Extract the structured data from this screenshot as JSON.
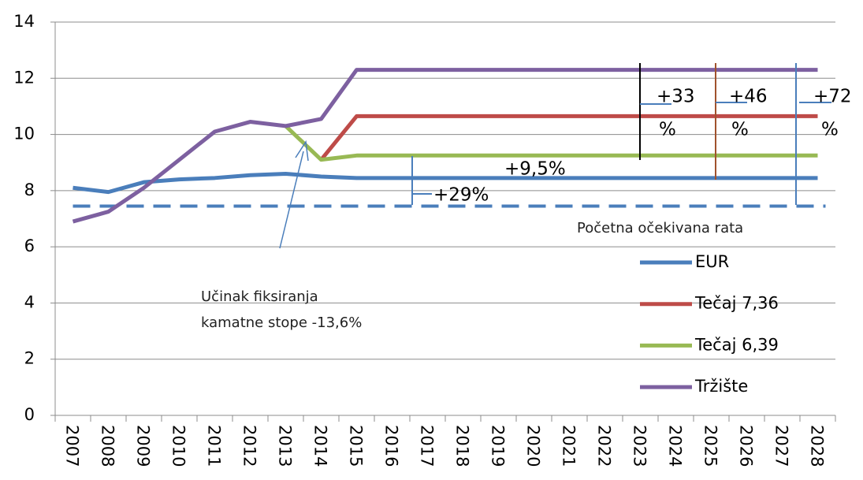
{
  "chart_data": {
    "type": "line",
    "categories": [
      "2007",
      "2008",
      "2009",
      "2010",
      "2011",
      "2012",
      "2013",
      "2014",
      "2015",
      "2016",
      "2017",
      "2018",
      "2019",
      "2020",
      "2021",
      "2022",
      "2023",
      "2024",
      "2025",
      "2026",
      "2027",
      "2028"
    ],
    "series": [
      {
        "name": "EUR",
        "color": "#4a7ebb",
        "values": [
          8.1,
          7.95,
          8.3,
          8.4,
          8.45,
          8.55,
          8.6,
          8.5,
          8.45,
          8.45,
          8.45,
          8.45,
          8.45,
          8.45,
          8.45,
          8.45,
          8.45,
          8.45,
          8.45,
          8.45,
          8.45,
          8.45
        ]
      },
      {
        "name": "Tečaj 7,36",
        "color": "#be4b48",
        "values": [
          null,
          null,
          null,
          null,
          null,
          null,
          null,
          9.1,
          10.65,
          10.65,
          10.65,
          10.65,
          10.65,
          10.65,
          10.65,
          10.65,
          10.65,
          10.65,
          10.65,
          10.65,
          10.65,
          10.65
        ]
      },
      {
        "name": "Tečaj 6,39",
        "color": "#98b954",
        "values": [
          null,
          null,
          null,
          null,
          null,
          null,
          10.3,
          9.1,
          9.25,
          9.25,
          9.25,
          9.25,
          9.25,
          9.25,
          9.25,
          9.25,
          9.25,
          9.25,
          9.25,
          9.25,
          9.25,
          9.25
        ]
      },
      {
        "name": "Tržište",
        "color": "#7d60a0",
        "values": [
          6.9,
          7.25,
          8.1,
          9.1,
          10.1,
          10.45,
          10.3,
          10.55,
          12.3,
          12.3,
          12.3,
          12.3,
          12.3,
          12.3,
          12.3,
          12.3,
          12.3,
          12.3,
          12.3,
          12.3,
          12.3,
          12.3
        ]
      }
    ],
    "reference_line": {
      "value": 7.45,
      "label": "Početna očekivana rata",
      "color": "#4a7ebb"
    },
    "ylim": [
      0,
      14
    ],
    "yticks": [
      0,
      2,
      4,
      6,
      8,
      10,
      12,
      14
    ],
    "grid": true,
    "legend": "right",
    "annotations": {
      "fixing": [
        "Učinak fiksiranja",
        "kamatne stope -13,6%"
      ],
      "p33": [
        "+33",
        "%"
      ],
      "p46": [
        "+46",
        "%"
      ],
      "p72": [
        "+72",
        "%"
      ],
      "p95": "+9,5%",
      "p29": "+29%"
    }
  }
}
